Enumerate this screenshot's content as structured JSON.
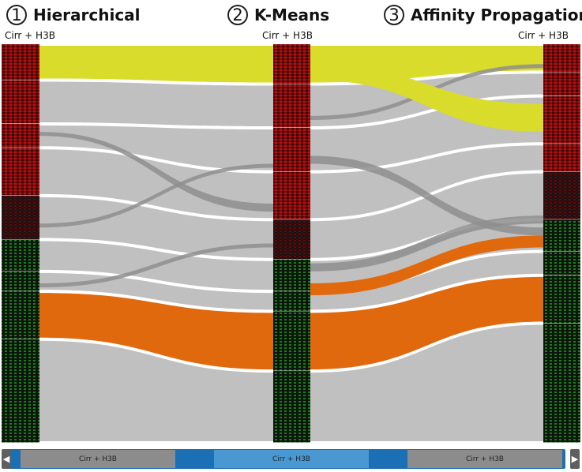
{
  "steps": [
    {
      "number": "1",
      "title": "Hierarchical",
      "label": "Cirr + H3B"
    },
    {
      "number": "2",
      "title": "K-Means",
      "label": "Cirr + H3B"
    },
    {
      "number": "3",
      "title": "Affinity Propagation",
      "label": "Cirr + H3B"
    }
  ],
  "scrollbar": {
    "left_arrow": "◀",
    "right_arrow": "▶",
    "thumbs": [
      "Cirr + H3B",
      "Cirr + H3B",
      "Cirr + H3B"
    ]
  },
  "colors": {
    "yellow": "#d9dc2a",
    "orange": "#e0690e",
    "gray": "#c0c0c0",
    "dark_gray": "#8e8e8e",
    "scroll_blue": "#1b6fb4"
  },
  "clusters": {
    "hierarchical": [
      0.09,
      0.11,
      0.06,
      0.12,
      0.11,
      0.08,
      0.05,
      0.12,
      0.26
    ],
    "kmeans": [
      0.1,
      0.11,
      0.11,
      0.12,
      0.1,
      0.08,
      0.05,
      0.15,
      0.18
    ],
    "affinity": [
      0.07,
      0.06,
      0.12,
      0.07,
      0.12,
      0.08,
      0.06,
      0.12,
      0.3
    ]
  }
}
